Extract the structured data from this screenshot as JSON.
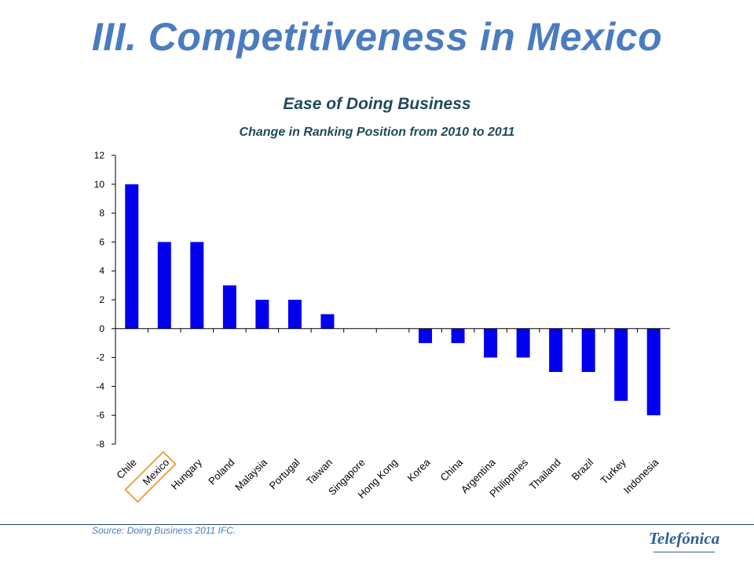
{
  "slide": {
    "title": "III. Competitiveness in Mexico",
    "source": "Source: Doing Business 2011 IFC.",
    "brand": "Telefónica"
  },
  "highlight": {
    "category": "Mexico",
    "color": "#f0a040"
  },
  "chart_data": {
    "type": "bar",
    "title": "Ease of Doing Business",
    "subtitle": "Change in Ranking Position from 2010 to 2011",
    "categories": [
      "Chile",
      "Mexico",
      "Hungary",
      "Poland",
      "Malaysia",
      "Portugal",
      "Taiwan",
      "Singapore",
      "Hong Kong",
      "Korea",
      "China",
      "Argentina",
      "Philippines",
      "Thailand",
      "Brazil",
      "Turkey",
      "Indonesia"
    ],
    "values": [
      10,
      6,
      6,
      3,
      2,
      2,
      1,
      0,
      0,
      -1,
      -1,
      -2,
      -2,
      -3,
      -3,
      -5,
      -6
    ],
    "ylim": [
      -8,
      12
    ],
    "yticks": [
      12,
      10,
      8,
      6,
      4,
      2,
      0,
      -2,
      -4,
      -6,
      -8
    ],
    "bar_color": "#0000ee",
    "grid": false,
    "legend": false
  }
}
